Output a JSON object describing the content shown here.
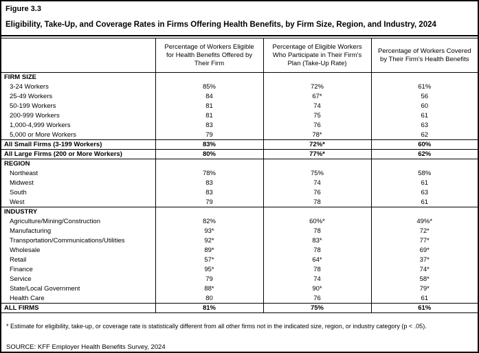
{
  "figure_label": "Figure 3.3",
  "title": "Eligibility, Take-Up, and Coverage Rates in Firms Offering Health Benefits, by Firm Size, Region, and Industry, 2024",
  "table": {
    "columns": [
      "Percentage of Workers Eligible for Health Benefits Offered by Their Firm",
      "Percentage of Eligible Workers Who Participate in Their Firm's Plan (Take-Up Rate)",
      "Percentage of Workers Covered by Their Firm's Health Benefits"
    ],
    "sections": [
      {
        "header": "FIRM SIZE",
        "rows": [
          {
            "label": "3-24 Workers",
            "values": [
              "85%",
              "72%",
              "61%"
            ],
            "bold": false
          },
          {
            "label": "25-49 Workers",
            "values": [
              "84",
              "67*",
              "56"
            ],
            "bold": false
          },
          {
            "label": "50-199 Workers",
            "values": [
              "81",
              "74",
              "60"
            ],
            "bold": false
          },
          {
            "label": "200-999 Workers",
            "values": [
              "81",
              "75",
              "61"
            ],
            "bold": false
          },
          {
            "label": "1,000-4,999 Workers",
            "values": [
              "83",
              "76",
              "63"
            ],
            "bold": false
          },
          {
            "label": "5,000 or More Workers",
            "values": [
              "79",
              "78*",
              "62"
            ],
            "bold": false
          },
          {
            "label": "All Small Firms (3-199 Workers)",
            "values": [
              "83%",
              "72%*",
              "60%"
            ],
            "bold": true
          },
          {
            "label": "All Large Firms (200 or More Workers)",
            "values": [
              "80%",
              "77%*",
              "62%"
            ],
            "bold": true
          }
        ]
      },
      {
        "header": "REGION",
        "rows": [
          {
            "label": "Northeast",
            "values": [
              "78%",
              "75%",
              "58%"
            ],
            "bold": false
          },
          {
            "label": "Midwest",
            "values": [
              "83",
              "74",
              "61"
            ],
            "bold": false
          },
          {
            "label": "South",
            "values": [
              "83",
              "76",
              "63"
            ],
            "bold": false
          },
          {
            "label": "West",
            "values": [
              "79",
              "78",
              "61"
            ],
            "bold": false
          }
        ]
      },
      {
        "header": "INDUSTRY",
        "rows": [
          {
            "label": "Agriculture/Mining/Construction",
            "values": [
              "82%",
              "60%*",
              "49%*"
            ],
            "bold": false
          },
          {
            "label": "Manufacturing",
            "values": [
              "93*",
              "78",
              "72*"
            ],
            "bold": false
          },
          {
            "label": "Transportation/Communications/Utilities",
            "values": [
              "92*",
              "83*",
              "77*"
            ],
            "bold": false
          },
          {
            "label": "Wholesale",
            "values": [
              "89*",
              "78",
              "69*"
            ],
            "bold": false
          },
          {
            "label": "Retail",
            "values": [
              "57*",
              "64*",
              "37*"
            ],
            "bold": false
          },
          {
            "label": "Finance",
            "values": [
              "95*",
              "78",
              "74*"
            ],
            "bold": false
          },
          {
            "label": "Service",
            "values": [
              "79",
              "74",
              "58*"
            ],
            "bold": false
          },
          {
            "label": "State/Local Government",
            "values": [
              "88*",
              "90*",
              "79*"
            ],
            "bold": false
          },
          {
            "label": "Health Care",
            "values": [
              "80",
              "76",
              "61"
            ],
            "bold": false
          }
        ]
      }
    ],
    "total_row": {
      "label": "ALL FIRMS",
      "values": [
        "81%",
        "75%",
        "61%"
      ]
    }
  },
  "footnote": "* Estimate for eligibility, take-up, or coverage rate is statistically different from all other firms not in the indicated size, region, or industry category (p < .05).",
  "source": "SOURCE: KFF Employer Health Benefits Survey, 2024"
}
